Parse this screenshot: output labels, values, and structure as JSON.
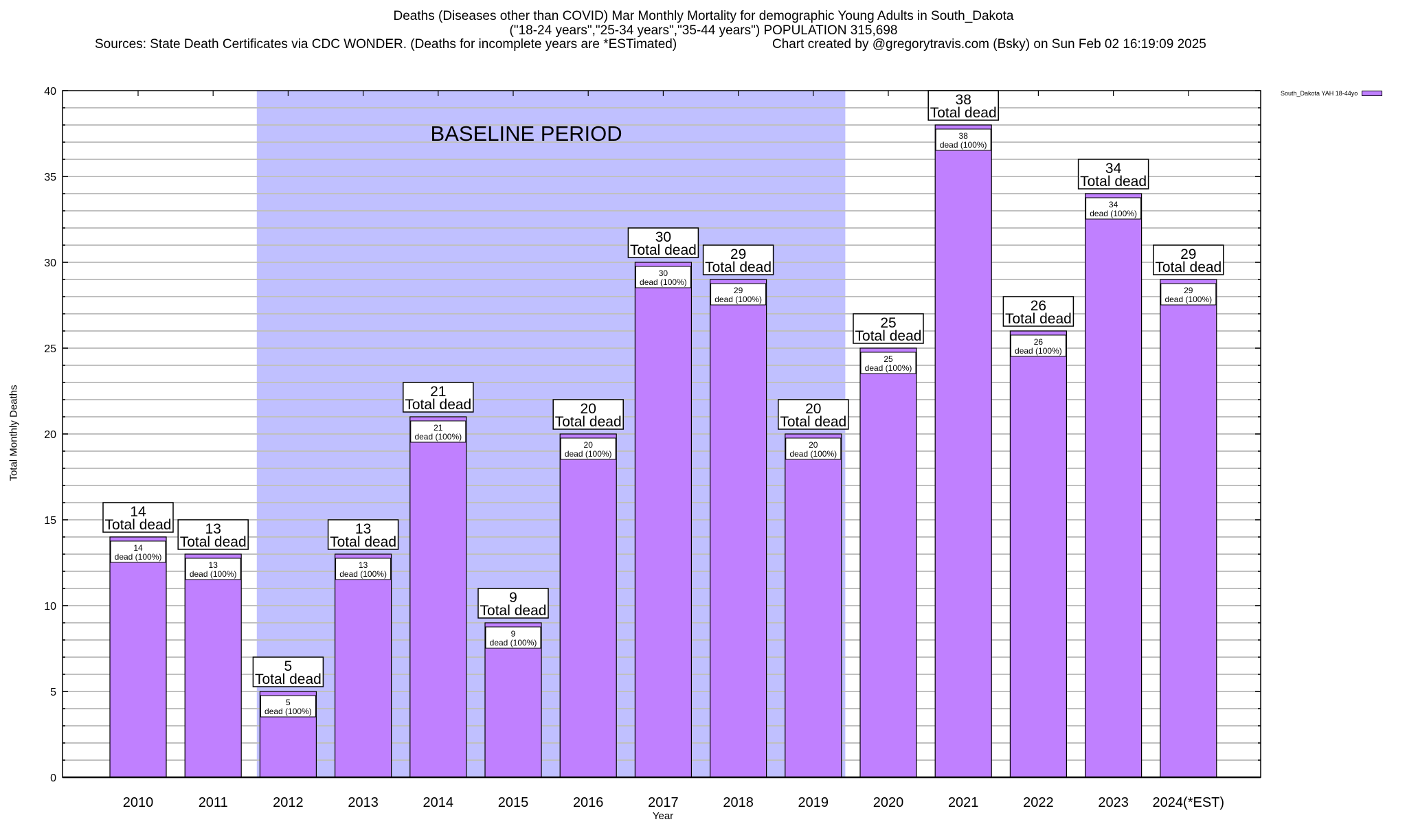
{
  "title": {
    "line1": "Deaths (Diseases other than COVID) Mar Monthly Mortality for demographic Young Adults in South_Dakota",
    "line2": "(\"18-24 years\",\"25-34 years\",\"35-44 years\") POPULATION 315,698",
    "line3_left": "Sources: State Death Certificates via CDC WONDER. (Deaths for incomplete years are *ESTimated)",
    "line3_right": "Chart created by @gregorytravis.com (Bsky) on Sun Feb 02 16:19:09 2025"
  },
  "colors": {
    "bar": "#c080ff",
    "baseline": "#c0c0ff",
    "grid": "#c0c0c0"
  },
  "chart_data": {
    "type": "bar",
    "xlabel": "Year",
    "ylabel": "Total Monthly Deaths",
    "ylim": [
      0,
      40
    ],
    "yticks": [
      0,
      5,
      10,
      15,
      20,
      25,
      30,
      35,
      40
    ],
    "grid": true,
    "legend_position": "top-right (outside)",
    "categories": [
      "2010",
      "2011",
      "2012",
      "2013",
      "2014",
      "2015",
      "2016",
      "2017",
      "2018",
      "2019",
      "2020",
      "2021",
      "2022",
      "2023",
      "2024(*EST)"
    ],
    "series": [
      {
        "name": "South_Dakota YAH 18-44yo",
        "values": [
          14,
          13,
          5,
          13,
          21,
          9,
          20,
          30,
          29,
          20,
          25,
          38,
          26,
          34,
          29
        ]
      }
    ],
    "total_label": "Total dead",
    "inner_label": "dead (100%)",
    "baseline": {
      "label": "BASELINE PERIOD",
      "from": "2012",
      "to": "2019"
    }
  }
}
